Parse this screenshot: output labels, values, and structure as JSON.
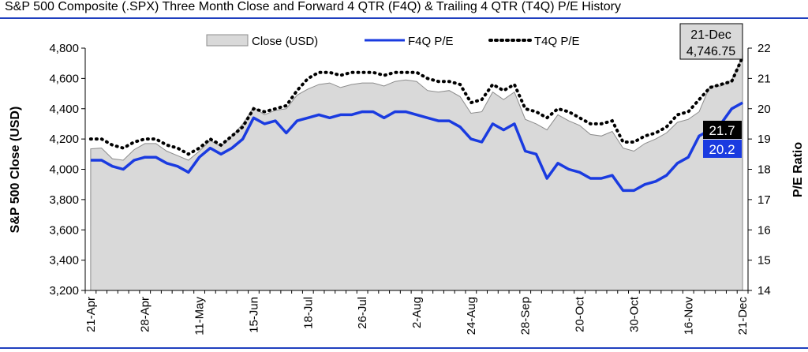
{
  "title": "S&P 500 Composite (.SPX) Three Month Close and Forward 4 QTR (F4Q) & Trailing 4 QTR (T4Q) P/E History",
  "colors": {
    "area": "#d9d9d9",
    "area_stroke": "#8c8c8c",
    "f4q": "#1a3be0",
    "t4q": "#000000",
    "rule": "#1f3fbf"
  },
  "chart_data": {
    "type": "area",
    "ylabel": "S&P 500 Close (USD)",
    "y2label": "P/E Ratio",
    "ylim": [
      3200,
      4800
    ],
    "y2lim": [
      14,
      22
    ],
    "y_ticks": [
      "3,200",
      "3,400",
      "3,600",
      "3,800",
      "4,000",
      "4,200",
      "4,400",
      "4,600",
      "4,800"
    ],
    "y_tick_values": [
      3200,
      3400,
      3600,
      3800,
      4000,
      4200,
      4400,
      4600,
      4800
    ],
    "y2_ticks": [
      "14",
      "15",
      "16",
      "17",
      "18",
      "19",
      "20",
      "21",
      "22"
    ],
    "y2_tick_values": [
      14,
      15,
      16,
      17,
      18,
      19,
      20,
      21,
      22
    ],
    "x_ticks": [
      {
        "label": "21-Apr",
        "i": 0
      },
      {
        "label": "28-Apr",
        "i": 5
      },
      {
        "label": "11-May",
        "i": 10
      },
      {
        "label": "15-Jun",
        "i": 15
      },
      {
        "label": "18-Jul",
        "i": 20
      },
      {
        "label": "26-Jul",
        "i": 25
      },
      {
        "label": "2-Aug",
        "i": 30
      },
      {
        "label": "24-Aug",
        "i": 35
      },
      {
        "label": "28-Sep",
        "i": 40
      },
      {
        "label": "20-Oct",
        "i": 45
      },
      {
        "label": "30-Oct",
        "i": 50
      },
      {
        "label": "16-Nov",
        "i": 55
      },
      {
        "label": "21-Dec",
        "i": 60
      }
    ],
    "legend": [
      "Close (USD)",
      "F4Q P/E",
      "T4Q P/E"
    ],
    "series": [
      {
        "name": "Close (USD)",
        "axis": "left",
        "values": [
          4135,
          4140,
          4070,
          4060,
          4130,
          4170,
          4170,
          4120,
          4090,
          4060,
          4120,
          4190,
          4150,
          4220,
          4300,
          4410,
          4360,
          4390,
          4400,
          4490,
          4530,
          4560,
          4570,
          4540,
          4560,
          4570,
          4570,
          4550,
          4580,
          4590,
          4580,
          4520,
          4510,
          4520,
          4480,
          4370,
          4380,
          4510,
          4460,
          4510,
          4330,
          4300,
          4260,
          4360,
          4320,
          4290,
          4230,
          4220,
          4250,
          4140,
          4120,
          4170,
          4200,
          4240,
          4310,
          4330,
          4380,
          4550,
          4550,
          4590,
          4750
        ]
      },
      {
        "name": "F4Q P/E",
        "axis": "right",
        "values": [
          18.3,
          18.3,
          18.1,
          18.0,
          18.3,
          18.4,
          18.4,
          18.2,
          18.1,
          17.9,
          18.4,
          18.7,
          18.5,
          18.7,
          19.0,
          19.7,
          19.5,
          19.6,
          19.2,
          19.6,
          19.7,
          19.8,
          19.7,
          19.8,
          19.8,
          19.9,
          19.9,
          19.7,
          19.9,
          19.9,
          19.8,
          19.7,
          19.6,
          19.6,
          19.4,
          19.0,
          18.9,
          19.5,
          19.3,
          19.5,
          18.6,
          18.5,
          17.7,
          18.2,
          18.0,
          17.9,
          17.7,
          17.7,
          17.8,
          17.3,
          17.3,
          17.5,
          17.6,
          17.8,
          18.2,
          18.4,
          19.1,
          19.3,
          19.5,
          20.0,
          20.2
        ]
      },
      {
        "name": "T4Q P/E",
        "axis": "right",
        "values": [
          19.0,
          19.0,
          18.8,
          18.7,
          18.9,
          19.0,
          19.0,
          18.8,
          18.7,
          18.5,
          18.7,
          19.0,
          18.8,
          19.1,
          19.4,
          20.0,
          19.9,
          20.0,
          20.1,
          20.6,
          21.0,
          21.2,
          21.2,
          21.1,
          21.2,
          21.2,
          21.2,
          21.1,
          21.2,
          21.2,
          21.2,
          21.0,
          20.9,
          20.9,
          20.8,
          20.2,
          20.3,
          20.8,
          20.6,
          20.8,
          20.0,
          19.9,
          19.7,
          20.0,
          19.9,
          19.7,
          19.5,
          19.5,
          19.6,
          18.9,
          18.9,
          19.1,
          19.2,
          19.4,
          19.8,
          19.9,
          20.3,
          20.7,
          20.8,
          20.9,
          21.7
        ]
      }
    ],
    "callouts": {
      "date_label": "21-Dec",
      "close_label": "4,746.75",
      "t4q_label": "21.7",
      "f4q_label": "20.2"
    }
  }
}
